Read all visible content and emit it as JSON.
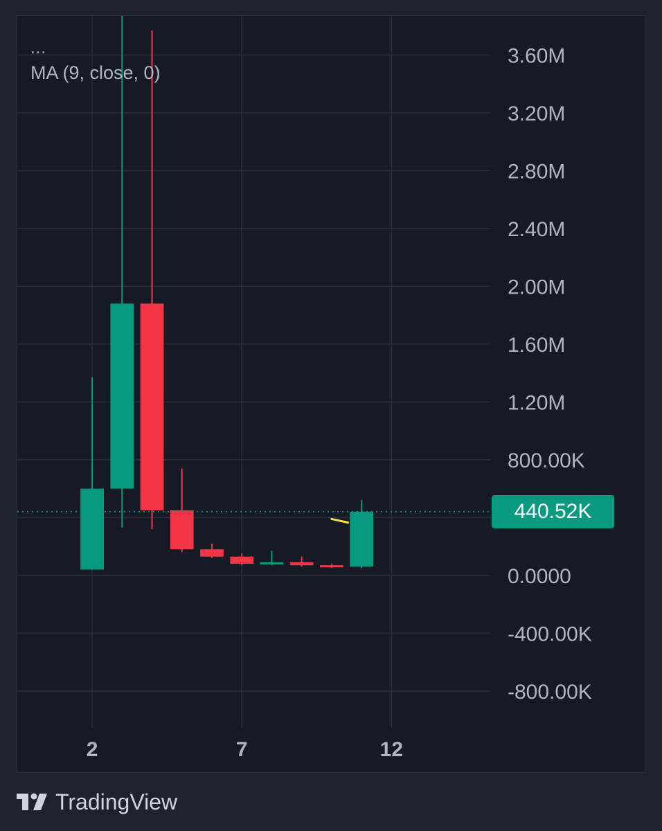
{
  "legend": {
    "dots": "...",
    "indicator": "MA (9, close, 0)"
  },
  "brand": {
    "name": "TradingView",
    "logo_icon": "tradingview-logo-icon"
  },
  "price_tag": {
    "label": "440.52K",
    "value": 440520,
    "color": "#089981"
  },
  "colors": {
    "up": "#089981",
    "down": "#f23645",
    "ma": "#f5e342",
    "grid": "#2a2e39",
    "text": "#b2b5be"
  },
  "chart_data": {
    "type": "candlestick",
    "x_ticks": [
      2,
      7,
      12
    ],
    "y_ticks": [
      {
        "value": 3600000,
        "label": "3.60M"
      },
      {
        "value": 3200000,
        "label": "3.20M"
      },
      {
        "value": 2800000,
        "label": "2.80M"
      },
      {
        "value": 2400000,
        "label": "2.40M"
      },
      {
        "value": 2000000,
        "label": "2.00M"
      },
      {
        "value": 1600000,
        "label": "1.60M"
      },
      {
        "value": 1200000,
        "label": "1.20M"
      },
      {
        "value": 800000,
        "label": "800.00K"
      },
      {
        "value": 400000,
        "label": ""
      },
      {
        "value": 0,
        "label": "0.0000"
      },
      {
        "value": -400000,
        "label": "-400.00K"
      },
      {
        "value": -800000,
        "label": "-800.00K"
      }
    ],
    "ylim": [
      -1050000,
      3870000
    ],
    "xlim": [
      -0.5,
      15.3
    ],
    "grid": true,
    "candles": [
      {
        "x": 2,
        "open": 40000,
        "high": 1370000,
        "low": 40000,
        "close": 600000
      },
      {
        "x": 3,
        "open": 600000,
        "high": 3870000,
        "low": 330000,
        "close": 1880000
      },
      {
        "x": 4,
        "open": 1880000,
        "high": 3770000,
        "low": 320000,
        "close": 450000
      },
      {
        "x": 5,
        "open": 450000,
        "high": 740000,
        "low": 160000,
        "close": 180000
      },
      {
        "x": 6,
        "open": 180000,
        "high": 220000,
        "low": 120000,
        "close": 130000
      },
      {
        "x": 7,
        "open": 130000,
        "high": 150000,
        "low": 70000,
        "close": 80000
      },
      {
        "x": 8,
        "open": 80000,
        "high": 170000,
        "low": 70000,
        "close": 90000
      },
      {
        "x": 9,
        "open": 90000,
        "high": 130000,
        "low": 60000,
        "close": 70000
      },
      {
        "x": 10,
        "open": 70000,
        "high": 80000,
        "low": 50000,
        "close": 60000
      },
      {
        "x": 11,
        "open": 60000,
        "high": 520000,
        "low": 50000,
        "close": 440520
      }
    ],
    "ma": {
      "name": "MA (9, close, 0)",
      "points": [
        {
          "x": 10,
          "y": 390000
        },
        {
          "x": 10.55,
          "y": 365000
        }
      ]
    }
  }
}
